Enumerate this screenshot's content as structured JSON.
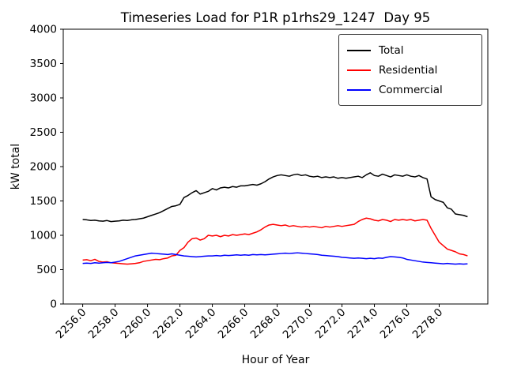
{
  "chart_data": {
    "type": "line",
    "title": "Timeseries Load for P1R p1rhs29_1247  Day 95",
    "xlabel": "Hour of Year",
    "ylabel": "kW total",
    "xlim": [
      2254.8,
      2281.0
    ],
    "ylim": [
      0,
      4000
    ],
    "xticks": [
      2256,
      2258,
      2260,
      2262,
      2264,
      2266,
      2268,
      2270,
      2272,
      2274,
      2276,
      2278
    ],
    "xtick_labels": [
      "2256.0",
      "2258.0",
      "2260.0",
      "2262.0",
      "2264.0",
      "2266.0",
      "2268.0",
      "2270.0",
      "2272.0",
      "2274.0",
      "2276.0",
      "2278.0"
    ],
    "yticks": [
      0,
      500,
      1000,
      1500,
      2000,
      2500,
      3000,
      3500,
      4000
    ],
    "legend_position": "upper right",
    "grid": false,
    "x_start": 2256.0,
    "x_step": 0.25,
    "series": [
      {
        "name": "Total",
        "color": "#000000",
        "values": [
          1230,
          1225,
          1215,
          1220,
          1210,
          1205,
          1215,
          1200,
          1205,
          1210,
          1220,
          1215,
          1225,
          1230,
          1240,
          1250,
          1270,
          1290,
          1310,
          1330,
          1360,
          1390,
          1420,
          1430,
          1450,
          1550,
          1580,
          1620,
          1650,
          1600,
          1620,
          1640,
          1680,
          1660,
          1690,
          1700,
          1690,
          1710,
          1700,
          1720,
          1720,
          1730,
          1740,
          1730,
          1750,
          1780,
          1820,
          1850,
          1870,
          1880,
          1870,
          1860,
          1880,
          1890,
          1870,
          1880,
          1860,
          1850,
          1860,
          1840,
          1850,
          1840,
          1850,
          1830,
          1840,
          1830,
          1840,
          1850,
          1860,
          1840,
          1880,
          1910,
          1870,
          1860,
          1890,
          1870,
          1850,
          1880,
          1870,
          1860,
          1880,
          1860,
          1850,
          1870,
          1840,
          1820,
          1560,
          1520,
          1500,
          1480,
          1400,
          1380,
          1310,
          1300,
          1290,
          1270
        ]
      },
      {
        "name": "Residential",
        "color": "#ff0000",
        "values": [
          640,
          645,
          630,
          650,
          620,
          610,
          615,
          600,
          595,
          590,
          585,
          580,
          585,
          590,
          600,
          620,
          630,
          640,
          650,
          645,
          660,
          670,
          700,
          710,
          780,
          820,
          900,
          950,
          960,
          930,
          950,
          1000,
          990,
          1000,
          980,
          1000,
          990,
          1010,
          1000,
          1010,
          1020,
          1010,
          1030,
          1050,
          1080,
          1120,
          1150,
          1160,
          1150,
          1140,
          1150,
          1130,
          1140,
          1130,
          1120,
          1130,
          1120,
          1130,
          1120,
          1110,
          1130,
          1120,
          1130,
          1140,
          1130,
          1140,
          1150,
          1160,
          1200,
          1230,
          1250,
          1240,
          1220,
          1210,
          1230,
          1220,
          1200,
          1230,
          1220,
          1230,
          1220,
          1230,
          1210,
          1220,
          1230,
          1220,
          1100,
          1000,
          900,
          850,
          800,
          780,
          760,
          730,
          720,
          700
        ]
      },
      {
        "name": "Commercial",
        "color": "#0000ff",
        "values": [
          590,
          595,
          590,
          600,
          595,
          600,
          605,
          600,
          610,
          620,
          640,
          660,
          680,
          700,
          710,
          720,
          730,
          740,
          735,
          730,
          725,
          720,
          730,
          720,
          710,
          700,
          695,
          690,
          685,
          690,
          695,
          700,
          700,
          705,
          700,
          710,
          705,
          710,
          715,
          710,
          715,
          710,
          720,
          715,
          720,
          715,
          720,
          725,
          730,
          735,
          740,
          735,
          740,
          745,
          740,
          735,
          730,
          725,
          720,
          710,
          705,
          700,
          695,
          690,
          680,
          675,
          670,
          665,
          670,
          665,
          660,
          665,
          660,
          670,
          665,
          680,
          690,
          685,
          680,
          670,
          650,
          640,
          630,
          620,
          610,
          605,
          600,
          595,
          590,
          585,
          590,
          585,
          580,
          585,
          580,
          585
        ]
      }
    ]
  }
}
